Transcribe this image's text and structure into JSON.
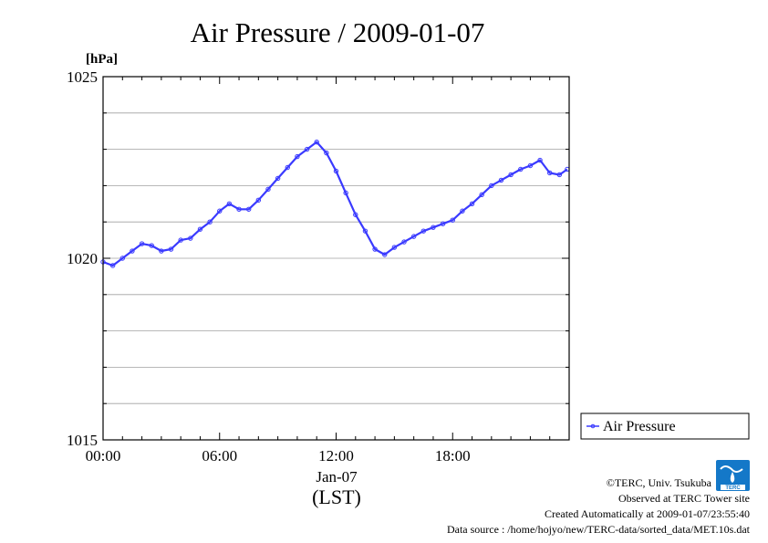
{
  "chart_data": {
    "type": "line",
    "title": "Air Pressure / 2009-01-07",
    "ylabel": "[hPa]",
    "x_tick_labels": [
      "00:00",
      "06:00",
      "12:00",
      "18:00"
    ],
    "x_date_label": "Jan-07",
    "x_timezone_label": "(LST)",
    "xlim": [
      0,
      24
    ],
    "ylim": [
      1015,
      1025
    ],
    "y_tick_labels": [
      "1015",
      "1020",
      "1025"
    ],
    "grid": "horizontal, every 1 hPa",
    "legend_position": "right",
    "series": [
      {
        "name": "Air Pressure",
        "color": "#3a3aff",
        "x": [
          0,
          0.5,
          1.0,
          1.5,
          2.0,
          2.5,
          3.0,
          3.5,
          4.0,
          4.5,
          5.0,
          5.5,
          6.0,
          6.5,
          7.0,
          7.5,
          8.0,
          8.5,
          9.0,
          9.5,
          10.0,
          10.5,
          11.0,
          11.5,
          12.0,
          12.5,
          13.0,
          13.5,
          14.0,
          14.5,
          15.0,
          15.5,
          16.0,
          16.5,
          17.0,
          17.5,
          18.0,
          18.5,
          19.0,
          19.5,
          20.0,
          20.5,
          21.0,
          21.5,
          22.0,
          22.5,
          23.0,
          23.5,
          23.9
        ],
        "values": [
          1019.9,
          1019.8,
          1020.0,
          1020.2,
          1020.4,
          1020.35,
          1020.2,
          1020.25,
          1020.5,
          1020.55,
          1020.8,
          1021.0,
          1021.3,
          1021.5,
          1021.35,
          1021.35,
          1021.6,
          1021.9,
          1022.2,
          1022.5,
          1022.8,
          1023.0,
          1023.2,
          1022.9,
          1022.4,
          1021.8,
          1021.2,
          1020.75,
          1020.25,
          1020.1,
          1020.3,
          1020.45,
          1020.6,
          1020.75,
          1020.85,
          1020.95,
          1021.05,
          1021.3,
          1021.5,
          1021.75,
          1022.0,
          1022.15,
          1022.3,
          1022.45,
          1022.55,
          1022.7,
          1022.35,
          1022.3,
          1022.45
        ]
      }
    ]
  },
  "footer": {
    "copyright": "©TERC, Univ. Tsukuba",
    "observed": "Observed at TERC Tower site",
    "created": "Created Automatically at 2009-01-07/23:55:40",
    "source": "Data source : /home/hojyo/new/TERC-data/sorted_data/MET.10s.dat"
  },
  "logo": {
    "text": "TERC",
    "icon": "terc-logo-icon",
    "color": "#1478c8"
  }
}
